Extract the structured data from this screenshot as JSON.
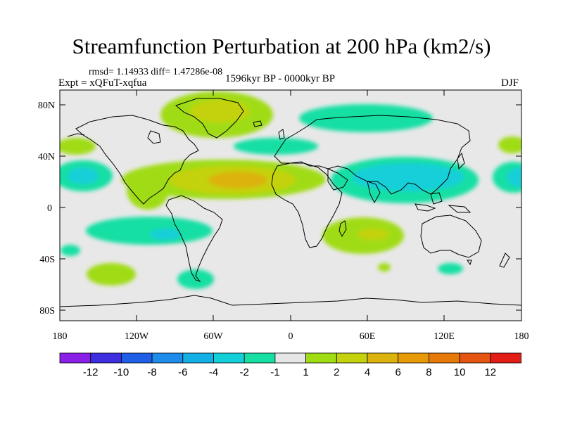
{
  "header": {
    "title": "Streamfunction Perturbation at 200 hPa (km2/s)",
    "stats": "rmsd= 1.14933 diff= 1.47286e-08",
    "expt": "Expt = xQFuT-xqfua",
    "period": "1596kyr BP - 0000kyr BP",
    "season": "DJF"
  },
  "map": {
    "background_color": "#e8e8e8",
    "lat_labels": [
      "80N",
      "40N",
      "0",
      "40S",
      "80S"
    ],
    "lon_labels": [
      "180",
      "120W",
      "60W",
      "0",
      "60E",
      "120E",
      "180"
    ]
  },
  "colorbar": {
    "colors": [
      "#8a1fe8",
      "#3d2ee0",
      "#1f5ee6",
      "#1e8cea",
      "#13b0e6",
      "#12cfd8",
      "#16dfa4",
      "#e6e6e6",
      "#a0dc14",
      "#c4d20e",
      "#dcb20c",
      "#e69a08",
      "#e67a08",
      "#e35510",
      "#e41c16"
    ],
    "labels": [
      "-12",
      "-10",
      "-8",
      "-6",
      "-4",
      "-2",
      "-1",
      "1",
      "2",
      "4",
      "6",
      "8",
      "10",
      "12"
    ]
  }
}
